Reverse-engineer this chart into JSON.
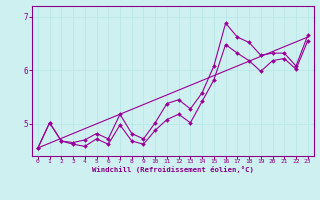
{
  "xlabel": "Windchill (Refroidissement éolien,°C)",
  "bg_color": "#cff0f0",
  "line_color": "#990099",
  "grid_color": "#b8e8e8",
  "axis_color": "#880088",
  "xlim": [
    -0.5,
    23.5
  ],
  "ylim": [
    4.4,
    7.2
  ],
  "xticks": [
    0,
    1,
    2,
    3,
    4,
    5,
    6,
    7,
    8,
    9,
    10,
    11,
    12,
    13,
    14,
    15,
    16,
    17,
    18,
    19,
    20,
    21,
    22,
    23
  ],
  "yticks": [
    5,
    6,
    7
  ],
  "series1_x": [
    0,
    1,
    2,
    3,
    4,
    5,
    6,
    7,
    8,
    9,
    10,
    11,
    12,
    13,
    14,
    15,
    16,
    17,
    18,
    19,
    20,
    21,
    22,
    23
  ],
  "series1_y": [
    4.55,
    5.02,
    4.68,
    4.65,
    4.7,
    4.82,
    4.72,
    5.18,
    4.82,
    4.72,
    5.02,
    5.38,
    5.45,
    5.28,
    5.58,
    6.08,
    6.88,
    6.62,
    6.52,
    6.28,
    6.32,
    6.32,
    6.08,
    6.65
  ],
  "series2_x": [
    0,
    1,
    2,
    3,
    4,
    5,
    6,
    7,
    8,
    9,
    10,
    11,
    12,
    13,
    14,
    15,
    16,
    17,
    18,
    19,
    20,
    21,
    22,
    23
  ],
  "series2_y": [
    4.55,
    5.02,
    4.68,
    4.62,
    4.58,
    4.72,
    4.62,
    4.98,
    4.68,
    4.62,
    4.88,
    5.08,
    5.18,
    5.02,
    5.42,
    5.82,
    6.48,
    6.32,
    6.18,
    5.98,
    6.18,
    6.22,
    6.02,
    6.55
  ],
  "trend_x": [
    0,
    23
  ],
  "trend_y": [
    4.55,
    6.62
  ]
}
